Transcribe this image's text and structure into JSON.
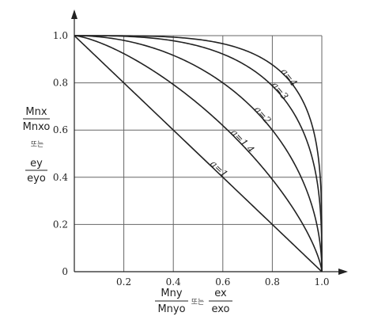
{
  "chart_data": {
    "type": "line",
    "title": "",
    "xlim": [
      0,
      1
    ],
    "ylim": [
      0,
      1
    ],
    "x_ticks": [
      "0.2",
      "0.4",
      "0.6",
      "0.8",
      "1.0"
    ],
    "y_ticks": [
      "0",
      "0.2",
      "0.4",
      "0.6",
      "0.8",
      "1.0"
    ],
    "grid": true,
    "xlabel": {
      "numerator_1": "Mny",
      "denominator_1": "Mnyo",
      "connector": "또는",
      "numerator_2": "ex",
      "denominator_2": "exo"
    },
    "ylabel": {
      "numerator_1": "Mnx",
      "denominator_1": "Mnxo",
      "connector": "또는",
      "numerator_2": "ey",
      "denominator_2": "eyo"
    },
    "series": [
      {
        "name": "a=1",
        "alpha": 1
      },
      {
        "name": "a=1.4",
        "alpha": 1.4
      },
      {
        "name": "a=2",
        "alpha": 2
      },
      {
        "name": "a=3",
        "alpha": 3
      },
      {
        "name": "a=4",
        "alpha": 4
      }
    ]
  }
}
